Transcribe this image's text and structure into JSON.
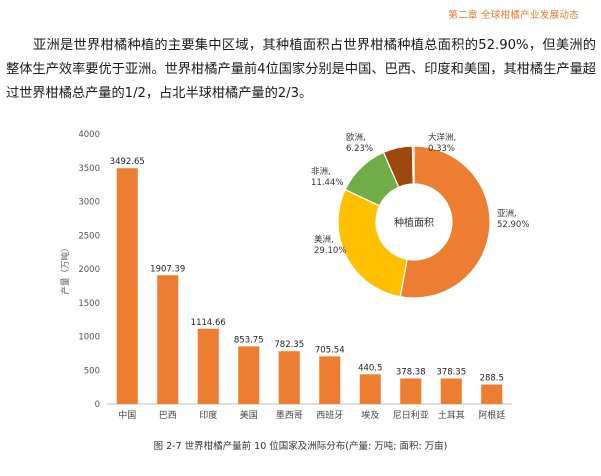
{
  "header": {
    "chapter": "第二章  全球柑橘产业发展动态"
  },
  "paragraph": "亚洲是世界柑橘种植的主要集中区域，其种植面积占世界柑橘种植总面积的52.90%，但美洲的整体生产效率要优于亚洲。世界柑橘产量前4位国家分别是中国、巴西、印度和美国，其柑橘生产量超过世界柑橘总产量的1/2，占北半球柑橘产量的2/3。",
  "caption": "图 2-7  世界柑橘产量前 10 位国家及洲际分布(产量: 万吨; 面积: 万亩)",
  "chart_data": [
    {
      "type": "bar",
      "ylabel": "产量（万吨）",
      "ylim": [
        0,
        4000
      ],
      "yticks": [
        0,
        500,
        1000,
        1500,
        2000,
        2500,
        3000,
        3500,
        4000
      ],
      "categories": [
        "中国",
        "巴西",
        "印度",
        "美国",
        "墨西哥",
        "西班牙",
        "埃及",
        "尼日利亚",
        "土耳其",
        "阿根廷"
      ],
      "values": [
        3492.65,
        1907.39,
        1114.66,
        853.75,
        782.35,
        705.54,
        440.5,
        378.38,
        378.35,
        288.5
      ],
      "labels": [
        "3492.65",
        "1907.39",
        "1114.66",
        "853.75",
        "782.35",
        "705.54",
        "440.5",
        "378.38",
        "378.35",
        "288.5"
      ],
      "color": "#ed7d31"
    },
    {
      "type": "pie",
      "title": "种植面积",
      "slices": [
        {
          "name": "亚洲",
          "value": 52.9,
          "label": "52.90%",
          "color": "#ed7d31"
        },
        {
          "name": "美洲",
          "value": 29.1,
          "label": "29.10%",
          "color": "#ffc000"
        },
        {
          "name": "非洲",
          "value": 11.44,
          "label": "11.44%",
          "color": "#70ad47"
        },
        {
          "name": "欧洲",
          "value": 6.23,
          "label": "6.23%",
          "color": "#9e480e"
        },
        {
          "name": "大洋洲",
          "value": 0.33,
          "label": "0.33%",
          "color": "#5b9bd5"
        }
      ]
    }
  ]
}
